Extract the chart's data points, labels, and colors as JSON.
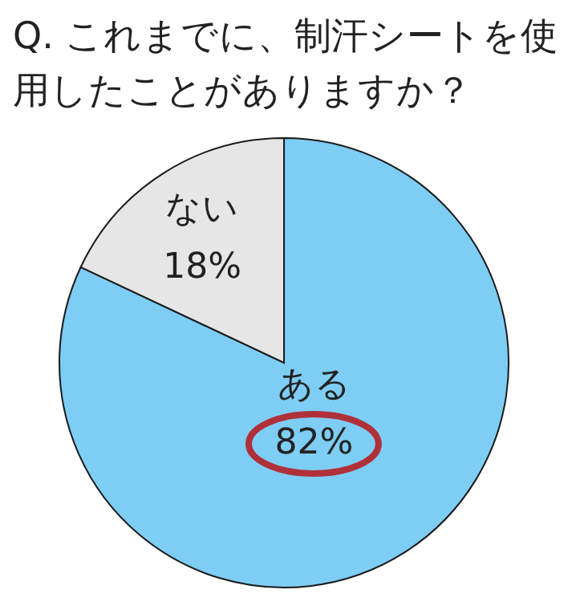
{
  "chart_data": {
    "type": "pie",
    "title": "Q. これまでに、制汗シートを使用したことがありますか？",
    "categories": [
      "ある",
      "ない"
    ],
    "values": [
      82,
      18
    ],
    "value_labels": [
      "82%",
      "18%"
    ],
    "colors": [
      "#7ecdf4",
      "#e6e6e6"
    ]
  }
}
